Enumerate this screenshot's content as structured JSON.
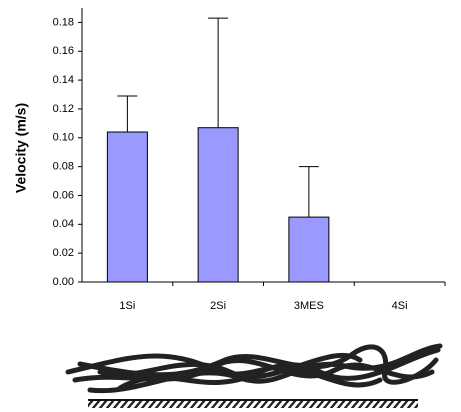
{
  "chart_data": {
    "type": "bar",
    "y_label": "Velocity (m/s)",
    "categories": [
      "1Si",
      "2Si",
      "3MES",
      "4Si"
    ],
    "values": [
      0.104,
      0.107,
      0.045,
      0
    ],
    "errors": [
      0.025,
      0.076,
      0.035,
      0
    ],
    "color": "#9999ff",
    "ylim": [
      0,
      0.19
    ],
    "yticks": [
      {
        "value": 0,
        "label": "0.00"
      },
      {
        "value": 0.02,
        "label": "0.02"
      },
      {
        "value": 0.04,
        "label": "0.04"
      },
      {
        "value": 0.06,
        "label": "0.06"
      },
      {
        "value": 0.08,
        "label": "0.08"
      },
      {
        "value": 0.1,
        "label": "0.10"
      },
      {
        "value": 0.12,
        "label": "0.12"
      },
      {
        "value": 0.14,
        "label": "0.14"
      },
      {
        "value": 0.16,
        "label": "0.16"
      },
      {
        "value": 0.18,
        "label": "0.18"
      }
    ]
  }
}
